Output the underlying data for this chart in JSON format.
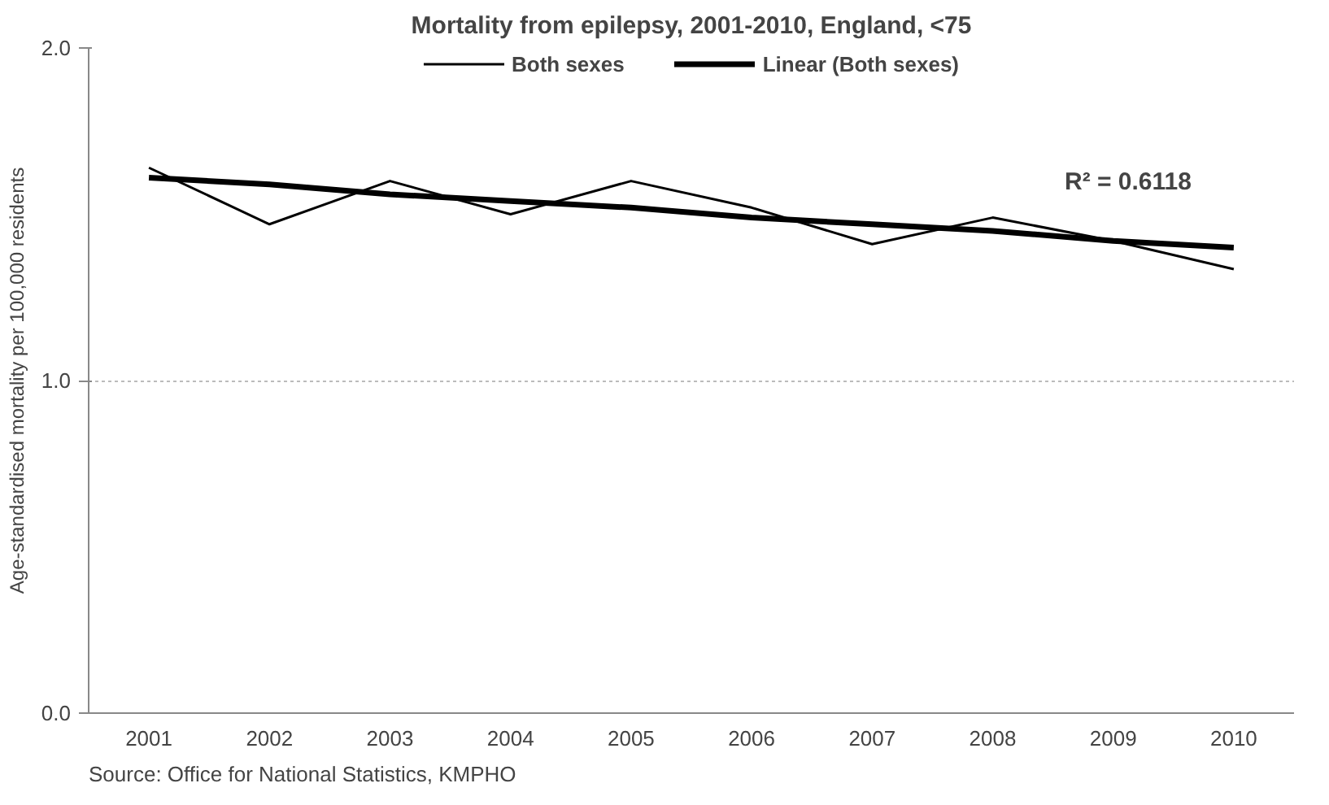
{
  "chart_data": {
    "type": "line",
    "title": "Mortality from epilepsy, 2001-2010, England, <75",
    "ylabel": "Age-standardised mortality per 100,000 residents",
    "categories": [
      "2001",
      "2002",
      "2003",
      "2004",
      "2005",
      "2006",
      "2007",
      "2008",
      "2009",
      "2010"
    ],
    "series": [
      {
        "name": "Both sexes",
        "color": "#000000",
        "values": [
          1.64,
          1.47,
          1.6,
          1.5,
          1.6,
          1.52,
          1.41,
          1.49,
          1.42,
          1.335
        ]
      },
      {
        "name": "Linear (Both sexes)",
        "color": "#000000",
        "type": "line",
        "values": [
          1.61,
          1.59,
          1.56,
          1.54,
          1.52,
          1.49,
          1.47,
          1.45,
          1.42,
          1.4
        ]
      }
    ],
    "ylim": [
      0,
      2
    ],
    "yticks": [
      {
        "value": 0,
        "label": "0.0"
      },
      {
        "value": 1,
        "label": "1.0"
      },
      {
        "value": 2,
        "label": "2.0"
      }
    ],
    "grid": "y",
    "legend": "top",
    "marker": "none",
    "line_style": "solid",
    "annotations": [
      "R² = 0.6118",
      "Source: Office for National Statistics, KMPHO"
    ]
  }
}
